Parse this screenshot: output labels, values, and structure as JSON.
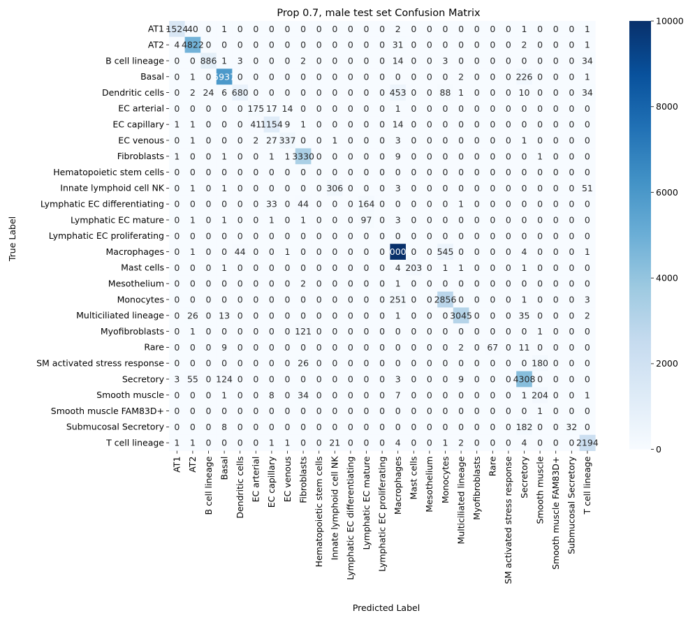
{
  "chart_data": {
    "type": "heatmap",
    "title": "Prop 0.7, male test set Confusion Matrix",
    "xlabel": "Predicted Label",
    "ylabel": "True Label",
    "labels": [
      "AT1",
      "AT2",
      "B cell lineage",
      "Basal",
      "Dendritic cells",
      "EC arterial",
      "EC capillary",
      "EC venous",
      "Fibroblasts",
      "Hematopoietic stem cells",
      "Innate lymphoid cell NK",
      "Lymphatic EC differentiating",
      "Lymphatic EC mature",
      "Lymphatic EC proliferating",
      "Macrophages",
      "Mast cells",
      "Mesothelium",
      "Monocytes",
      "Multiciliated lineage",
      "Myofibroblasts",
      "Rare",
      "SM activated stress response",
      "Secretory",
      "Smooth muscle",
      "Smooth muscle FAM83D+",
      "Submucosal Secretory",
      "T cell lineage"
    ],
    "matrix": [
      [
        1524,
        40,
        0,
        1,
        0,
        0,
        0,
        0,
        0,
        0,
        0,
        0,
        0,
        0,
        2,
        0,
        0,
        0,
        0,
        0,
        0,
        0,
        1,
        0,
        0,
        0,
        1
      ],
      [
        4,
        4822,
        0,
        0,
        0,
        0,
        0,
        0,
        0,
        0,
        0,
        0,
        0,
        0,
        31,
        0,
        0,
        0,
        0,
        0,
        0,
        0,
        2,
        0,
        0,
        0,
        1
      ],
      [
        0,
        0,
        886,
        1,
        3,
        0,
        0,
        0,
        2,
        0,
        0,
        0,
        0,
        0,
        14,
        0,
        0,
        3,
        0,
        0,
        0,
        0,
        0,
        0,
        0,
        0,
        34
      ],
      [
        0,
        1,
        0,
        5937,
        0,
        0,
        0,
        0,
        0,
        0,
        0,
        0,
        0,
        0,
        0,
        0,
        0,
        0,
        2,
        0,
        0,
        0,
        226,
        0,
        0,
        0,
        1
      ],
      [
        0,
        2,
        24,
        6,
        680,
        0,
        0,
        0,
        0,
        0,
        0,
        0,
        0,
        0,
        453,
        0,
        0,
        88,
        1,
        0,
        0,
        0,
        10,
        0,
        0,
        0,
        34
      ],
      [
        0,
        0,
        0,
        0,
        0,
        175,
        17,
        14,
        0,
        0,
        0,
        0,
        0,
        0,
        1,
        0,
        0,
        0,
        0,
        0,
        0,
        0,
        0,
        0,
        0,
        0,
        0
      ],
      [
        1,
        1,
        0,
        0,
        0,
        41,
        1154,
        9,
        1,
        0,
        0,
        0,
        0,
        0,
        14,
        0,
        0,
        0,
        0,
        0,
        0,
        0,
        0,
        0,
        0,
        0,
        0
      ],
      [
        0,
        1,
        0,
        0,
        0,
        2,
        27,
        337,
        0,
        0,
        1,
        0,
        0,
        0,
        3,
        0,
        0,
        0,
        0,
        0,
        0,
        0,
        1,
        0,
        0,
        0,
        0
      ],
      [
        1,
        0,
        0,
        1,
        0,
        0,
        1,
        1,
        3330,
        0,
        0,
        0,
        0,
        0,
        9,
        0,
        0,
        0,
        0,
        0,
        0,
        0,
        0,
        1,
        0,
        0,
        0
      ],
      [
        0,
        0,
        0,
        0,
        0,
        0,
        0,
        0,
        0,
        0,
        0,
        0,
        0,
        0,
        0,
        0,
        0,
        0,
        0,
        0,
        0,
        0,
        0,
        0,
        0,
        0,
        0
      ],
      [
        0,
        1,
        0,
        1,
        0,
        0,
        0,
        0,
        0,
        0,
        306,
        0,
        0,
        0,
        3,
        0,
        0,
        0,
        0,
        0,
        0,
        0,
        0,
        0,
        0,
        0,
        51
      ],
      [
        0,
        0,
        0,
        0,
        0,
        0,
        33,
        0,
        44,
        0,
        0,
        0,
        164,
        0,
        0,
        0,
        0,
        0,
        1,
        0,
        0,
        0,
        0,
        0,
        0,
        0,
        0
      ],
      [
        0,
        1,
        0,
        1,
        0,
        0,
        1,
        0,
        1,
        0,
        0,
        0,
        97,
        0,
        3,
        0,
        0,
        0,
        0,
        0,
        0,
        0,
        0,
        0,
        0,
        0,
        0
      ],
      [
        0,
        0,
        0,
        0,
        0,
        0,
        0,
        0,
        0,
        0,
        0,
        0,
        0,
        0,
        0,
        0,
        0,
        0,
        0,
        0,
        0,
        0,
        0,
        0,
        0,
        0,
        0
      ],
      [
        0,
        1,
        0,
        0,
        44,
        0,
        0,
        1,
        0,
        0,
        0,
        0,
        0,
        0,
        10001,
        0,
        0,
        545,
        0,
        0,
        0,
        0,
        4,
        0,
        0,
        0,
        1
      ],
      [
        0,
        0,
        0,
        1,
        0,
        0,
        0,
        0,
        0,
        0,
        0,
        0,
        0,
        0,
        4,
        203,
        0,
        1,
        1,
        0,
        0,
        0,
        1,
        0,
        0,
        0,
        0
      ],
      [
        0,
        0,
        0,
        0,
        0,
        0,
        0,
        0,
        2,
        0,
        0,
        0,
        0,
        0,
        1,
        0,
        0,
        0,
        0,
        0,
        0,
        0,
        0,
        0,
        0,
        0,
        0
      ],
      [
        0,
        0,
        0,
        0,
        0,
        0,
        0,
        0,
        0,
        0,
        0,
        0,
        0,
        0,
        251,
        0,
        0,
        2856,
        0,
        0,
        0,
        0,
        1,
        0,
        0,
        0,
        3
      ],
      [
        0,
        26,
        0,
        13,
        0,
        0,
        0,
        0,
        0,
        0,
        0,
        0,
        0,
        0,
        1,
        0,
        0,
        0,
        3045,
        0,
        0,
        0,
        35,
        0,
        0,
        0,
        2
      ],
      [
        0,
        1,
        0,
        0,
        0,
        0,
        0,
        0,
        121,
        0,
        0,
        0,
        0,
        0,
        0,
        0,
        0,
        0,
        0,
        0,
        0,
        0,
        0,
        1,
        0,
        0,
        0
      ],
      [
        0,
        0,
        0,
        9,
        0,
        0,
        0,
        0,
        0,
        0,
        0,
        0,
        0,
        0,
        0,
        0,
        0,
        0,
        2,
        0,
        67,
        0,
        11,
        0,
        0,
        0,
        0
      ],
      [
        0,
        0,
        0,
        0,
        0,
        0,
        0,
        0,
        26,
        0,
        0,
        0,
        0,
        0,
        0,
        0,
        0,
        0,
        0,
        0,
        0,
        0,
        0,
        180,
        0,
        0,
        0
      ],
      [
        3,
        55,
        0,
        124,
        0,
        0,
        0,
        0,
        0,
        0,
        0,
        0,
        0,
        0,
        3,
        0,
        0,
        0,
        9,
        0,
        0,
        0,
        4308,
        0,
        0,
        0,
        0
      ],
      [
        0,
        0,
        0,
        1,
        0,
        0,
        8,
        0,
        34,
        0,
        0,
        0,
        0,
        0,
        7,
        0,
        0,
        0,
        0,
        0,
        0,
        0,
        1,
        204,
        0,
        0,
        1
      ],
      [
        0,
        0,
        0,
        0,
        0,
        0,
        0,
        0,
        0,
        0,
        0,
        0,
        0,
        0,
        0,
        0,
        0,
        0,
        0,
        0,
        0,
        0,
        0,
        1,
        0,
        0,
        0
      ],
      [
        0,
        0,
        0,
        8,
        0,
        0,
        0,
        0,
        0,
        0,
        0,
        0,
        0,
        0,
        0,
        0,
        0,
        0,
        0,
        0,
        0,
        0,
        182,
        0,
        0,
        32,
        0
      ],
      [
        1,
        1,
        0,
        0,
        0,
        0,
        1,
        1,
        0,
        0,
        21,
        0,
        0,
        0,
        4,
        0,
        0,
        1,
        2,
        0,
        0,
        0,
        4,
        0,
        0,
        0,
        2194
      ]
    ],
    "colorbar": {
      "min": 0,
      "max": 10001,
      "ticks": [
        0,
        2000,
        4000,
        6000,
        8000,
        10000
      ],
      "colormap": "Blues",
      "color_low": "#f7fbff",
      "color_high": "#08306b"
    }
  }
}
